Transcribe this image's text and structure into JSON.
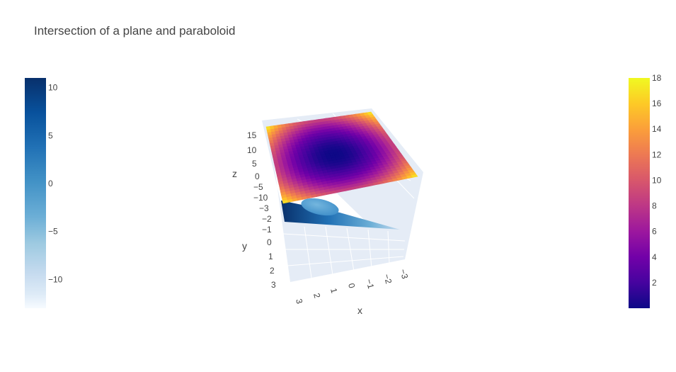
{
  "title": "Intersection of a plane and paraboloid",
  "chart_data": {
    "type": "surface3d",
    "title": "Intersection of a plane and paraboloid",
    "axes": {
      "x": {
        "label": "x",
        "range": [
          -3,
          3
        ],
        "ticks": [
          "3",
          "2",
          "1",
          "0",
          "−1",
          "−2",
          "−3"
        ]
      },
      "y": {
        "label": "y",
        "range": [
          -3,
          3
        ],
        "ticks": [
          "−3",
          "−2",
          "−1",
          "0",
          "1",
          "2",
          "3"
        ]
      },
      "z": {
        "label": "z",
        "range": [
          -13,
          18
        ],
        "ticks": [
          "15",
          "10",
          "5",
          "0",
          "−5",
          "−10"
        ]
      }
    },
    "series": [
      {
        "surface": "paraboloid",
        "formula": "z = x^2 + y^2",
        "colorscale": "Plasma",
        "cmin": 0,
        "cmax": 18
      },
      {
        "surface": "plane",
        "formula": "z = 2x + 2y - 1",
        "colorscale": "Blues",
        "cmin": -13,
        "cmax": 11
      }
    ],
    "colorbars": [
      {
        "side": "left",
        "range": [
          -13,
          11
        ],
        "ticks": [
          "10",
          "5",
          "0",
          "−5",
          "−10"
        ],
        "tick_values": [
          10,
          5,
          0,
          -5,
          -10
        ]
      },
      {
        "side": "right",
        "range": [
          0,
          18
        ],
        "ticks": [
          "18",
          "16",
          "14",
          "12",
          "10",
          "8",
          "6",
          "4",
          "2"
        ],
        "tick_values": [
          18,
          16,
          14,
          12,
          10,
          8,
          6,
          4,
          2
        ]
      }
    ],
    "colors": {
      "scene_background": "#e5ecf6",
      "grid": "#ffffff"
    }
  }
}
